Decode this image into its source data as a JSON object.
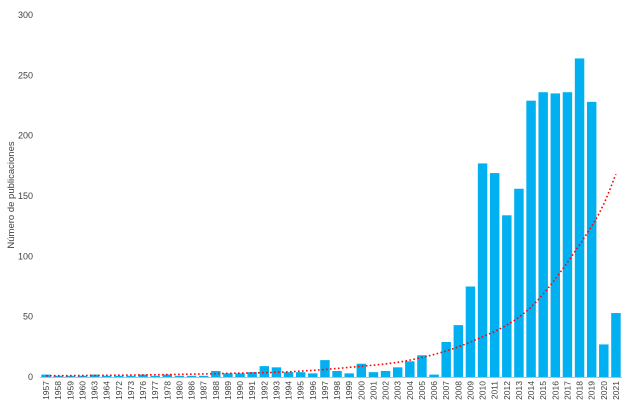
{
  "chart_data": {
    "type": "bar",
    "title": "",
    "xlabel": "",
    "ylabel": "Número de publicaciones",
    "ylim": [
      0,
      300
    ],
    "yticks": [
      0,
      50,
      100,
      150,
      200,
      250,
      300
    ],
    "grid": false,
    "legend": "none",
    "bar_color": "#00b0f0",
    "trend_color": "#ff0000",
    "categories": [
      "1957",
      "1958",
      "1959",
      "1960",
      "1963",
      "1964",
      "1972",
      "1973",
      "1976",
      "1977",
      "1978",
      "1980",
      "1986",
      "1987",
      "1988",
      "1989",
      "1990",
      "1991",
      "1992",
      "1993",
      "1994",
      "1995",
      "1996",
      "1997",
      "1998",
      "1999",
      "2000",
      "2001",
      "2002",
      "2003",
      "2004",
      "2005",
      "2006",
      "2007",
      "2008",
      "2009",
      "2010",
      "2011",
      "2012",
      "2013",
      "2014",
      "2015",
      "2016",
      "2017",
      "2018",
      "2019",
      "2020",
      "2021"
    ],
    "values": [
      2,
      1,
      1,
      1,
      2,
      1,
      1,
      1,
      2,
      1,
      2,
      1,
      1,
      1,
      5,
      3,
      3,
      4,
      9,
      8,
      4,
      4,
      3,
      14,
      5,
      3,
      11,
      4,
      5,
      8,
      13,
      18,
      2,
      29,
      43,
      75,
      177,
      169,
      134,
      156,
      229,
      236,
      235,
      236,
      264,
      228,
      27,
      53
    ],
    "trend": {
      "type": "exponential",
      "style": "dotted",
      "points": [
        [
          1,
          1
        ],
        [
          6,
          1.4
        ],
        [
          11,
          2
        ],
        [
          16,
          3
        ],
        [
          21,
          4.3
        ],
        [
          26,
          8
        ],
        [
          31,
          14
        ],
        [
          36,
          29
        ],
        [
          41,
          58
        ],
        [
          46,
          125
        ],
        [
          48,
          168
        ]
      ]
    }
  }
}
